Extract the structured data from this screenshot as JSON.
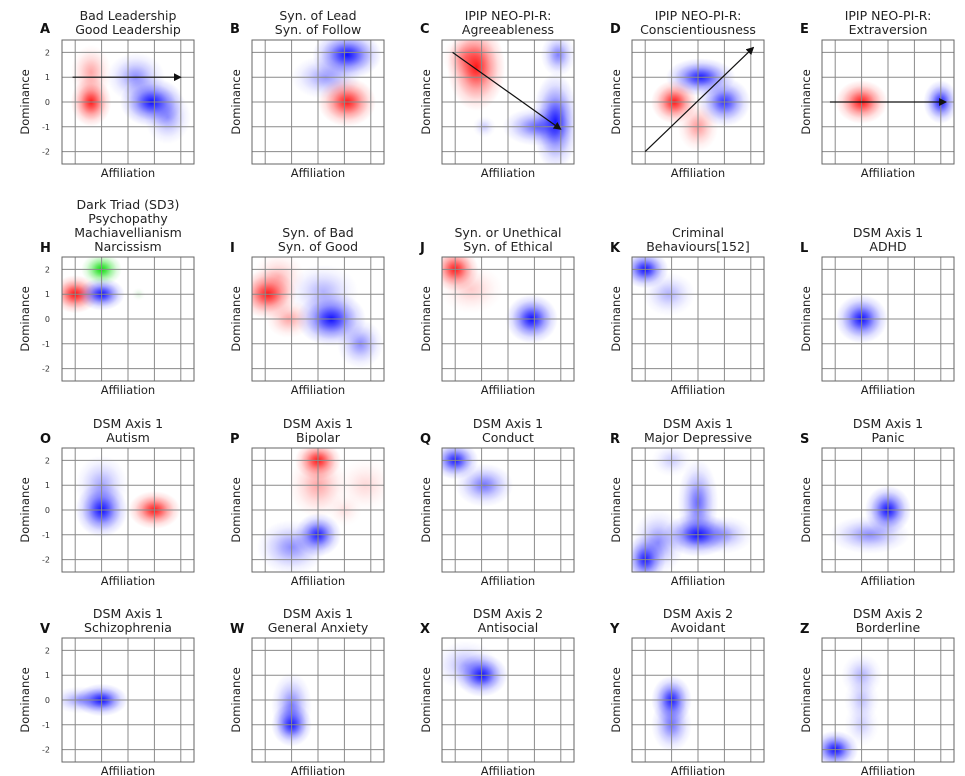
{
  "figure": {
    "x_axis_label": "Affiliation",
    "y_axis_label": "Dominance"
  },
  "chart_data": [
    {
      "letter": "A",
      "title_lines": [
        "Bad Leadership",
        "Good Leadership"
      ],
      "show_ticks": true,
      "yticks": [
        "2",
        "1",
        "0",
        "-1",
        "-2"
      ],
      "xlim": [
        -2.5,
        2.5
      ],
      "ylim": [
        -2.5,
        2.5
      ],
      "blobs": [
        {
          "color": "#ff0000",
          "x": -1.4,
          "y": 0.0,
          "sx": 0.35,
          "sy": 0.45,
          "a": 0.9
        },
        {
          "color": "#ff0000",
          "x": -1.4,
          "y": 1.2,
          "sx": 0.35,
          "sy": 0.5,
          "a": 0.35
        },
        {
          "color": "#0000ff",
          "x": 0.9,
          "y": 0.0,
          "sx": 0.55,
          "sy": 0.45,
          "a": 0.95
        },
        {
          "color": "#0000ff",
          "x": 0.3,
          "y": 1.0,
          "sx": 0.5,
          "sy": 0.45,
          "a": 0.45
        },
        {
          "color": "#0000ff",
          "x": 1.5,
          "y": -0.6,
          "sx": 0.4,
          "sy": 0.5,
          "a": 0.4
        }
      ],
      "arrows": [
        {
          "from": [
            -2.1,
            1.0
          ],
          "to": [
            2.0,
            1.0
          ]
        }
      ]
    },
    {
      "letter": "B",
      "title_lines": [
        "Syn. of Lead",
        "Syn. of Follow"
      ],
      "show_ticks": false,
      "yticks": [],
      "xlim": [
        -2.5,
        2.5
      ],
      "ylim": [
        -2.5,
        2.5
      ],
      "blobs": [
        {
          "color": "#0000ff",
          "x": 1.1,
          "y": 1.9,
          "sx": 0.6,
          "sy": 0.45,
          "a": 0.95
        },
        {
          "color": "#0000ff",
          "x": 0.3,
          "y": 1.0,
          "sx": 0.6,
          "sy": 0.4,
          "a": 0.4
        },
        {
          "color": "#ff0000",
          "x": 1.1,
          "y": 0.0,
          "sx": 0.5,
          "sy": 0.45,
          "a": 0.9
        }
      ],
      "arrows": []
    },
    {
      "letter": "C",
      "title_lines": [
        "IPIP NEO-PI-R:",
        "Agreeableness"
      ],
      "show_ticks": false,
      "yticks": [],
      "xlim": [
        -2.5,
        2.5
      ],
      "ylim": [
        -2.5,
        2.5
      ],
      "blobs": [
        {
          "color": "#ff0000",
          "x": -1.2,
          "y": 1.4,
          "sx": 0.5,
          "sy": 0.8,
          "a": 0.9
        },
        {
          "color": "#ff0000",
          "x": -1.6,
          "y": 1.8,
          "sx": 0.4,
          "sy": 0.4,
          "a": 0.35
        },
        {
          "color": "#0000ff",
          "x": 1.8,
          "y": -0.8,
          "sx": 0.4,
          "sy": 0.9,
          "a": 0.9
        },
        {
          "color": "#0000ff",
          "x": 1.1,
          "y": -1.0,
          "sx": 0.6,
          "sy": 0.35,
          "a": 0.6
        },
        {
          "color": "#0000ff",
          "x": 1.9,
          "y": 1.9,
          "sx": 0.3,
          "sy": 0.4,
          "a": 0.5
        },
        {
          "color": "#0000ff",
          "x": -0.9,
          "y": -1.0,
          "sx": 0.2,
          "sy": 0.2,
          "a": 0.2
        }
      ],
      "arrows": [
        {
          "from": [
            -2.1,
            2.0
          ],
          "to": [
            2.0,
            -1.1
          ]
        }
      ]
    },
    {
      "letter": "D",
      "title_lines": [
        "IPIP NEO-PI-R:",
        "Conscientiousness"
      ],
      "show_ticks": false,
      "yticks": [],
      "xlim": [
        -2.5,
        2.5
      ],
      "ylim": [
        -2.5,
        2.5
      ],
      "blobs": [
        {
          "color": "#0000ff",
          "x": 0.1,
          "y": 1.0,
          "sx": 0.6,
          "sy": 0.35,
          "a": 0.9
        },
        {
          "color": "#0000ff",
          "x": 1.0,
          "y": 0.0,
          "sx": 0.45,
          "sy": 0.45,
          "a": 0.8
        },
        {
          "color": "#ff0000",
          "x": -0.9,
          "y": 0.0,
          "sx": 0.4,
          "sy": 0.4,
          "a": 0.9
        },
        {
          "color": "#ff0000",
          "x": 0.0,
          "y": -1.0,
          "sx": 0.35,
          "sy": 0.45,
          "a": 0.4
        }
      ],
      "arrows": [
        {
          "from": [
            -2.0,
            -2.0
          ],
          "to": [
            2.1,
            2.2
          ]
        }
      ]
    },
    {
      "letter": "E",
      "title_lines": [
        "IPIP NEO-PI-R:",
        "Extraversion"
      ],
      "show_ticks": false,
      "yticks": [],
      "xlim": [
        -2.5,
        2.5
      ],
      "ylim": [
        -2.5,
        2.5
      ],
      "blobs": [
        {
          "color": "#ff0000",
          "x": -1.0,
          "y": 0.0,
          "sx": 0.45,
          "sy": 0.4,
          "a": 0.9
        },
        {
          "color": "#0000ff",
          "x": 2.0,
          "y": 0.0,
          "sx": 0.3,
          "sy": 0.4,
          "a": 0.9
        }
      ],
      "arrows": [
        {
          "from": [
            -2.2,
            0.0
          ],
          "to": [
            2.2,
            0.0
          ]
        }
      ]
    },
    {
      "letter": "H",
      "title_lines": [
        "Dark Triad (SD3)",
        "Psychopathy",
        "Machiavellianism",
        "Narcissism"
      ],
      "show_ticks": true,
      "yticks": [
        "2",
        "1",
        "0",
        "-1",
        "-2"
      ],
      "xlim": [
        -2.5,
        2.5
      ],
      "ylim": [
        -2.5,
        2.5
      ],
      "blobs": [
        {
          "color": "#ff0000",
          "x": -2.0,
          "y": 1.0,
          "sx": 0.4,
          "sy": 0.35,
          "a": 0.95
        },
        {
          "color": "#00dd00",
          "x": -1.0,
          "y": 2.0,
          "sx": 0.35,
          "sy": 0.3,
          "a": 0.95
        },
        {
          "color": "#0000ff",
          "x": -1.0,
          "y": 1.0,
          "sx": 0.4,
          "sy": 0.3,
          "a": 0.95
        },
        {
          "color": "#00aa00",
          "x": 0.4,
          "y": 1.0,
          "sx": 0.12,
          "sy": 0.12,
          "a": 0.12
        }
      ],
      "arrows": []
    },
    {
      "letter": "I",
      "title_lines": [
        "Syn. of Bad",
        "Syn. of Good"
      ],
      "show_ticks": false,
      "yticks": [],
      "xlim": [
        -2.5,
        2.5
      ],
      "ylim": [
        -2.5,
        2.5
      ],
      "blobs": [
        {
          "color": "#ff0000",
          "x": -1.9,
          "y": 1.0,
          "sx": 0.5,
          "sy": 0.45,
          "a": 0.9
        },
        {
          "color": "#ff0000",
          "x": -1.5,
          "y": 1.7,
          "sx": 0.45,
          "sy": 0.45,
          "a": 0.25
        },
        {
          "color": "#ff0000",
          "x": -1.1,
          "y": 0.0,
          "sx": 0.4,
          "sy": 0.35,
          "a": 0.35
        },
        {
          "color": "#0000ff",
          "x": 0.5,
          "y": 0.0,
          "sx": 0.6,
          "sy": 0.5,
          "a": 0.95
        },
        {
          "color": "#0000ff",
          "x": 0.2,
          "y": 1.1,
          "sx": 0.6,
          "sy": 0.5,
          "a": 0.3
        },
        {
          "color": "#0000ff",
          "x": 1.6,
          "y": -1.0,
          "sx": 0.4,
          "sy": 0.45,
          "a": 0.45
        }
      ],
      "arrows": []
    },
    {
      "letter": "J",
      "title_lines": [
        "Syn. or Unethical",
        "Syn. of Ethical"
      ],
      "show_ticks": false,
      "yticks": [],
      "xlim": [
        -2.5,
        2.5
      ],
      "ylim": [
        -2.5,
        2.5
      ],
      "blobs": [
        {
          "color": "#ff0000",
          "x": -2.0,
          "y": 2.0,
          "sx": 0.4,
          "sy": 0.4,
          "a": 0.9
        },
        {
          "color": "#ff0000",
          "x": -1.4,
          "y": 1.2,
          "sx": 0.55,
          "sy": 0.45,
          "a": 0.2
        },
        {
          "color": "#0000ff",
          "x": 0.9,
          "y": 0.0,
          "sx": 0.45,
          "sy": 0.45,
          "a": 0.95
        }
      ],
      "arrows": []
    },
    {
      "letter": "K",
      "title_lines": [
        "Criminal",
        "Behaviours[152]"
      ],
      "show_ticks": false,
      "yticks": [],
      "xlim": [
        -2.5,
        2.5
      ],
      "ylim": [
        -2.5,
        2.5
      ],
      "blobs": [
        {
          "color": "#0000ff",
          "x": -2.0,
          "y": 2.0,
          "sx": 0.4,
          "sy": 0.35,
          "a": 0.95
        },
        {
          "color": "#0000ff",
          "x": -1.1,
          "y": 1.0,
          "sx": 0.45,
          "sy": 0.4,
          "a": 0.3
        }
      ],
      "arrows": []
    },
    {
      "letter": "L",
      "title_lines": [
        "DSM Axis 1",
        "ADHD"
      ],
      "show_ticks": false,
      "yticks": [],
      "xlim": [
        -2.5,
        2.5
      ],
      "ylim": [
        -2.5,
        2.5
      ],
      "blobs": [
        {
          "color": "#0000ff",
          "x": -1.0,
          "y": 0.0,
          "sx": 0.45,
          "sy": 0.45,
          "a": 0.95
        }
      ],
      "arrows": []
    },
    {
      "letter": "O",
      "title_lines": [
        "DSM Axis 1",
        "Autism"
      ],
      "show_ticks": true,
      "yticks": [
        "2",
        "1",
        "0",
        "-1",
        "-2"
      ],
      "xlim": [
        -2.5,
        2.5
      ],
      "ylim": [
        -2.5,
        2.5
      ],
      "blobs": [
        {
          "color": "#0000ff",
          "x": -1.0,
          "y": 0.0,
          "sx": 0.45,
          "sy": 0.5,
          "a": 0.95
        },
        {
          "color": "#0000ff",
          "x": -1.0,
          "y": 1.0,
          "sx": 0.45,
          "sy": 0.55,
          "a": 0.35
        },
        {
          "color": "#ff0000",
          "x": 1.0,
          "y": 0.0,
          "sx": 0.45,
          "sy": 0.35,
          "a": 0.9
        }
      ],
      "arrows": []
    },
    {
      "letter": "P",
      "title_lines": [
        "DSM Axis 1",
        "Bipolar"
      ],
      "show_ticks": false,
      "yticks": [],
      "xlim": [
        -2.5,
        2.5
      ],
      "ylim": [
        -2.5,
        2.5
      ],
      "blobs": [
        {
          "color": "#ff0000",
          "x": 0.0,
          "y": 2.0,
          "sx": 0.4,
          "sy": 0.35,
          "a": 0.9
        },
        {
          "color": "#ff0000",
          "x": 0.0,
          "y": 1.0,
          "sx": 0.5,
          "sy": 0.6,
          "a": 0.35
        },
        {
          "color": "#ff0000",
          "x": 1.8,
          "y": 1.0,
          "sx": 0.5,
          "sy": 0.5,
          "a": 0.15
        },
        {
          "color": "#ff0000",
          "x": 1.0,
          "y": 0.0,
          "sx": 0.3,
          "sy": 0.3,
          "a": 0.12
        },
        {
          "color": "#0000ff",
          "x": 0.0,
          "y": -1.0,
          "sx": 0.4,
          "sy": 0.4,
          "a": 0.9
        },
        {
          "color": "#0000ff",
          "x": -1.0,
          "y": -1.5,
          "sx": 0.6,
          "sy": 0.5,
          "a": 0.45
        }
      ],
      "arrows": []
    },
    {
      "letter": "Q",
      "title_lines": [
        "DSM Axis 1",
        "Conduct"
      ],
      "show_ticks": false,
      "yticks": [],
      "xlim": [
        -2.5,
        2.5
      ],
      "ylim": [
        -2.5,
        2.5
      ],
      "blobs": [
        {
          "color": "#0000ff",
          "x": -2.0,
          "y": 2.0,
          "sx": 0.4,
          "sy": 0.35,
          "a": 0.9
        },
        {
          "color": "#0000ff",
          "x": -0.9,
          "y": 1.0,
          "sx": 0.5,
          "sy": 0.4,
          "a": 0.55
        }
      ],
      "arrows": []
    },
    {
      "letter": "R",
      "title_lines": [
        "DSM Axis 1",
        "Major Depressive"
      ],
      "show_ticks": false,
      "yticks": [],
      "xlim": [
        -2.5,
        2.5
      ],
      "ylim": [
        -2.5,
        2.5
      ],
      "blobs": [
        {
          "color": "#0000ff",
          "x": 0.0,
          "y": -1.0,
          "sx": 0.6,
          "sy": 0.4,
          "a": 0.95
        },
        {
          "color": "#0000ff",
          "x": 0.0,
          "y": 0.3,
          "sx": 0.35,
          "sy": 0.8,
          "a": 0.6
        },
        {
          "color": "#0000ff",
          "x": -2.0,
          "y": -2.0,
          "sx": 0.35,
          "sy": 0.45,
          "a": 0.9
        },
        {
          "color": "#0000ff",
          "x": -1.5,
          "y": -1.3,
          "sx": 0.45,
          "sy": 0.6,
          "a": 0.45
        },
        {
          "color": "#0000ff",
          "x": -1.0,
          "y": 2.0,
          "sx": 0.35,
          "sy": 0.3,
          "a": 0.2
        },
        {
          "color": "#0000ff",
          "x": 1.0,
          "y": -1.0,
          "sx": 0.5,
          "sy": 0.35,
          "a": 0.35
        }
      ],
      "arrows": []
    },
    {
      "letter": "S",
      "title_lines": [
        "DSM Axis 1",
        "Panic"
      ],
      "show_ticks": false,
      "yticks": [],
      "xlim": [
        -2.5,
        2.5
      ],
      "ylim": [
        -2.5,
        2.5
      ],
      "blobs": [
        {
          "color": "#0000ff",
          "x": 0.0,
          "y": 0.0,
          "sx": 0.4,
          "sy": 0.45,
          "a": 0.95
        },
        {
          "color": "#0000ff",
          "x": -0.7,
          "y": -1.0,
          "sx": 0.7,
          "sy": 0.35,
          "a": 0.45
        }
      ],
      "arrows": []
    },
    {
      "letter": "V",
      "title_lines": [
        "DSM Axis 1",
        "Schizophrenia"
      ],
      "show_ticks": true,
      "yticks": [
        "2",
        "1",
        "0",
        "-1",
        "-2"
      ],
      "xlim": [
        -2.5,
        2.5
      ],
      "ylim": [
        -2.5,
        2.5
      ],
      "blobs": [
        {
          "color": "#0000ff",
          "x": -1.0,
          "y": 0.0,
          "sx": 0.45,
          "sy": 0.3,
          "a": 0.95
        },
        {
          "color": "#0000ff",
          "x": -1.8,
          "y": 0.0,
          "sx": 0.5,
          "sy": 0.25,
          "a": 0.4
        }
      ],
      "arrows": []
    },
    {
      "letter": "W",
      "title_lines": [
        "DSM Axis 1",
        "General Anxiety"
      ],
      "show_ticks": false,
      "yticks": [],
      "xlim": [
        -2.5,
        2.5
      ],
      "ylim": [
        -2.5,
        2.5
      ],
      "blobs": [
        {
          "color": "#0000ff",
          "x": -1.0,
          "y": -1.0,
          "sx": 0.35,
          "sy": 0.4,
          "a": 0.9
        },
        {
          "color": "#0000ff",
          "x": -1.0,
          "y": -0.2,
          "sx": 0.35,
          "sy": 0.6,
          "a": 0.5
        }
      ],
      "arrows": []
    },
    {
      "letter": "X",
      "title_lines": [
        "DSM Axis 2",
        "Antisocial"
      ],
      "show_ticks": false,
      "yticks": [],
      "xlim": [
        -2.5,
        2.5
      ],
      "ylim": [
        -2.5,
        2.5
      ],
      "blobs": [
        {
          "color": "#0000ff",
          "x": -1.0,
          "y": 1.0,
          "sx": 0.45,
          "sy": 0.4,
          "a": 0.95
        },
        {
          "color": "#0000ff",
          "x": -1.6,
          "y": 1.4,
          "sx": 0.55,
          "sy": 0.45,
          "a": 0.3
        }
      ],
      "arrows": []
    },
    {
      "letter": "Y",
      "title_lines": [
        "DSM Axis 2",
        "Avoidant"
      ],
      "show_ticks": false,
      "yticks": [],
      "xlim": [
        -2.5,
        2.5
      ],
      "ylim": [
        -2.5,
        2.5
      ],
      "blobs": [
        {
          "color": "#0000ff",
          "x": -1.0,
          "y": 0.0,
          "sx": 0.35,
          "sy": 0.45,
          "a": 0.9
        },
        {
          "color": "#0000ff",
          "x": -1.0,
          "y": -1.0,
          "sx": 0.35,
          "sy": 0.5,
          "a": 0.55
        }
      ],
      "arrows": []
    },
    {
      "letter": "Z",
      "title_lines": [
        "DSM Axis 2",
        "Borderline"
      ],
      "show_ticks": false,
      "yticks": [],
      "xlim": [
        -2.5,
        2.5
      ],
      "ylim": [
        -2.5,
        2.5
      ],
      "blobs": [
        {
          "color": "#0000ff",
          "x": -2.0,
          "y": -2.0,
          "sx": 0.4,
          "sy": 0.35,
          "a": 0.95
        },
        {
          "color": "#0000ff",
          "x": -1.0,
          "y": 1.0,
          "sx": 0.35,
          "sy": 0.4,
          "a": 0.3
        },
        {
          "color": "#0000ff",
          "x": -1.0,
          "y": 0.0,
          "sx": 0.3,
          "sy": 0.4,
          "a": 0.25
        },
        {
          "color": "#0000ff",
          "x": -1.0,
          "y": -1.0,
          "sx": 0.3,
          "sy": 0.4,
          "a": 0.2
        }
      ],
      "arrows": []
    }
  ]
}
